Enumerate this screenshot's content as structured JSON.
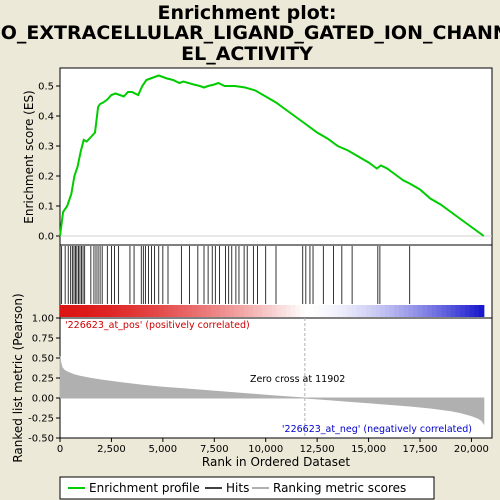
{
  "title_lines": [
    "Enrichment plot:",
    "GO_EXTRACELLULAR_LIGAND_GATED_ION_CHANN",
    "EL_ACTIVITY"
  ],
  "colors": {
    "background": "#ece9d8",
    "panel": "#ffffff",
    "profile": "#00cc00",
    "hits": "#000000",
    "metric": "#b0b0b0",
    "pos_label": "#cc0000",
    "neg_label": "#0000cc",
    "zero_line": "#b0b0b0"
  },
  "legend": {
    "profile": "Enrichment profile",
    "hits": "Hits",
    "metric": "Ranking metric scores"
  },
  "annotations": {
    "pos": "'226623_at_pos' (positively correlated)",
    "neg": "'226623_at_neg' (negatively correlated)",
    "zero_cross": "Zero cross at 11902"
  },
  "chart_data": [
    {
      "type": "line",
      "name": "enrichment-profile",
      "ylabel": "Enrichment score (ES)",
      "xlim": [
        0,
        21000
      ],
      "ylim": [
        -0.03,
        0.56
      ],
      "yticks": [
        0.0,
        0.1,
        0.2,
        0.3,
        0.4,
        0.5
      ],
      "ytick_labels": [
        "0.0",
        "0.1",
        "0.2",
        "0.3",
        "0.4",
        "0.5"
      ],
      "x": [
        0,
        150,
        350,
        550,
        700,
        850,
        1000,
        1150,
        1300,
        1500,
        1700,
        1850,
        1950,
        2100,
        2300,
        2500,
        2700,
        2900,
        3100,
        3300,
        3500,
        3800,
        4000,
        4200,
        4400,
        4600,
        4800,
        5000,
        5200,
        5500,
        5800,
        6000,
        6500,
        6800,
        7000,
        7200,
        7500,
        7700,
        8000,
        8500,
        9000,
        9500,
        10000,
        10500,
        11000,
        11500,
        12000,
        12500,
        13000,
        13500,
        14000,
        14500,
        15000,
        15400,
        15600,
        15900,
        16300,
        16700,
        17000,
        17500,
        18000,
        18500,
        19000,
        19500,
        20000,
        20300,
        20600
      ],
      "y": [
        0.0,
        0.08,
        0.1,
        0.14,
        0.2,
        0.23,
        0.28,
        0.32,
        0.315,
        0.33,
        0.345,
        0.43,
        0.44,
        0.445,
        0.455,
        0.47,
        0.475,
        0.47,
        0.465,
        0.48,
        0.48,
        0.47,
        0.5,
        0.52,
        0.525,
        0.53,
        0.535,
        0.53,
        0.525,
        0.52,
        0.51,
        0.515,
        0.505,
        0.5,
        0.495,
        0.5,
        0.505,
        0.51,
        0.5,
        0.5,
        0.495,
        0.485,
        0.465,
        0.445,
        0.42,
        0.395,
        0.37,
        0.345,
        0.325,
        0.3,
        0.285,
        0.265,
        0.245,
        0.225,
        0.235,
        0.225,
        0.205,
        0.185,
        0.175,
        0.155,
        0.125,
        0.105,
        0.08,
        0.055,
        0.03,
        0.015,
        0.0
      ]
    },
    {
      "type": "scatter",
      "name": "hits",
      "xlim": [
        0,
        21000
      ],
      "x": [
        80,
        250,
        400,
        520,
        600,
        680,
        750,
        820,
        900,
        970,
        1050,
        1120,
        1200,
        1500,
        1650,
        1750,
        1850,
        1950,
        2050,
        2300,
        2500,
        2650,
        2850,
        3400,
        3600,
        3950,
        4050,
        4150,
        4300,
        4450,
        4600,
        4800,
        5000,
        5250,
        5900,
        6300,
        6700,
        7000,
        7200,
        7400,
        7550,
        7750,
        8050,
        8200,
        8350,
        8550,
        8700,
        8950,
        9100,
        9400,
        9600,
        10000,
        10500,
        11800,
        11950,
        12150,
        12300,
        12800,
        13300,
        13700,
        14200,
        15450,
        15550,
        17000
      ]
    },
    {
      "type": "area",
      "name": "ranking-metric",
      "xlabel": "Rank in Ordered Dataset",
      "ylabel": "Ranked list metric (Pearson)",
      "xlim": [
        0,
        21000
      ],
      "ylim": [
        -0.5,
        1.0
      ],
      "yticks": [
        -0.5,
        -0.25,
        0.0,
        0.25,
        0.5,
        0.75,
        1.0
      ],
      "ytick_labels": [
        "-0.50",
        "-0.25",
        "0.00",
        "0.25",
        "0.50",
        "0.75",
        "1.00"
      ],
      "xticks": [
        0,
        2500,
        5000,
        7500,
        10000,
        12500,
        15000,
        17500,
        20000
      ],
      "xtick_labels": [
        "0",
        "2,500",
        "5,000",
        "7,500",
        "10,000",
        "12,500",
        "15,000",
        "17,500",
        "20,000"
      ],
      "x": [
        0,
        30,
        100,
        200,
        400,
        700,
        1000,
        1500,
        2000,
        3000,
        4000,
        5000,
        6000,
        7000,
        8000,
        9000,
        10000,
        11000,
        11902,
        13000,
        14000,
        15000,
        16000,
        17000,
        18000,
        19000,
        19500,
        20000,
        20300,
        20500,
        20600
      ],
      "y": [
        0.52,
        0.45,
        0.38,
        0.35,
        0.32,
        0.29,
        0.27,
        0.245,
        0.225,
        0.19,
        0.16,
        0.135,
        0.115,
        0.095,
        0.075,
        0.055,
        0.035,
        0.015,
        0.0,
        -0.02,
        -0.04,
        -0.06,
        -0.08,
        -0.1,
        -0.125,
        -0.16,
        -0.185,
        -0.22,
        -0.25,
        -0.28,
        -0.32
      ]
    }
  ],
  "zero_cross_rank": 11902
}
